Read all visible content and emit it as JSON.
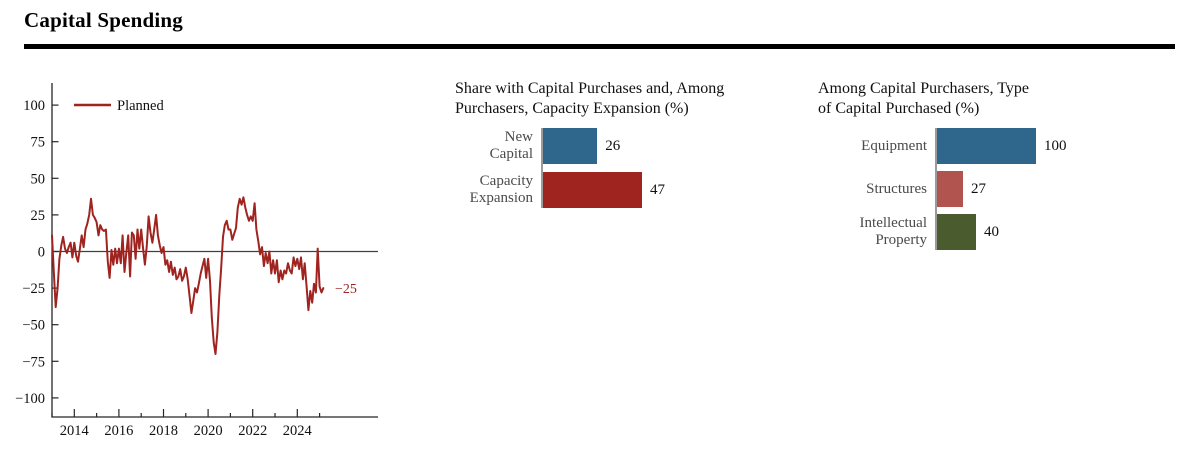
{
  "header": {
    "title": "Capital Spending"
  },
  "colors": {
    "line_red": "#9f2420",
    "bar_blue": "#2f678c",
    "bar_dark_red": "#9f2420",
    "bar_salmon": "#b1534e",
    "bar_green": "#4a5c2d",
    "axis": "#262626",
    "bar_axis_gray": "#9b9b9b"
  },
  "chart_data": [
    {
      "type": "line",
      "series": [
        {
          "name": "Planned",
          "color": "#9f2420",
          "start_year": 2013,
          "frequency": "monthly",
          "values": [
            11,
            -15,
            -38,
            -25,
            -5,
            4,
            10,
            2,
            -1,
            3,
            6,
            -4,
            6,
            -3,
            -7,
            2,
            11,
            3,
            15,
            19,
            25,
            36,
            25,
            23,
            20,
            11,
            18,
            15,
            14,
            15,
            -7,
            -18,
            1,
            -9,
            2,
            -8,
            2,
            -8,
            11,
            -14,
            -1,
            11,
            -17,
            13,
            11,
            -5,
            15,
            2,
            15,
            2,
            -9,
            4,
            24,
            13,
            6,
            15,
            25,
            11,
            4,
            -1,
            3,
            -9,
            -6,
            -14,
            -7,
            -16,
            -11,
            -19,
            -17,
            -12,
            -20,
            -17,
            -11,
            -19,
            -30,
            -42,
            -34,
            -25,
            -28,
            -22,
            -15,
            -10,
            -5,
            -18,
            -5,
            -20,
            -45,
            -62,
            -70,
            -55,
            -30,
            -12,
            10,
            18,
            21,
            15,
            15,
            8,
            12,
            16,
            30,
            36,
            32,
            37,
            30,
            25,
            21,
            24,
            21,
            33,
            15,
            7,
            -2,
            3,
            -10,
            -1,
            -8,
            0,
            -15,
            -6,
            -15,
            -6,
            -21,
            -13,
            -19,
            -13,
            -15,
            -8,
            -13,
            -15,
            -4,
            -10,
            -5,
            -12,
            -4,
            -19,
            -8,
            -24,
            -40,
            -27,
            -35,
            -22,
            -28,
            2,
            -24,
            -28,
            -25
          ]
        }
      ],
      "end_label": "−25",
      "end_value": -25,
      "ylim": [
        -100,
        100
      ],
      "yticks": [
        100,
        75,
        50,
        25,
        0,
        -25,
        -50,
        -75,
        -100
      ],
      "xticks_all_years": [
        2013,
        2014,
        2015,
        2016,
        2017,
        2018,
        2019,
        2020,
        2021,
        2022,
        2023,
        2024,
        2025
      ],
      "xticks_labeled": [
        2014,
        2016,
        2018,
        2020,
        2022,
        2024
      ],
      "legend_position": "top-left",
      "grid": false,
      "zero_line": true
    },
    {
      "type": "bar",
      "orientation": "horizontal",
      "title": "Share with Capital Purchases and, Among\nPurchasers, Capacity Expansion (%)",
      "categories": [
        "New\nCapital",
        "Capacity\nExpansion"
      ],
      "values": [
        26,
        47
      ],
      "colors": [
        "#2f678c",
        "#9f2420"
      ]
    },
    {
      "type": "bar",
      "orientation": "horizontal",
      "title": "Among Capital Purchasers, Type\nof Capital Purchased (%)",
      "categories": [
        "Equipment",
        "Structures",
        "Intellectual\nProperty"
      ],
      "values": [
        100,
        27,
        40
      ],
      "colors": [
        "#2f678c",
        "#b1534e",
        "#4a5c2d"
      ]
    }
  ]
}
